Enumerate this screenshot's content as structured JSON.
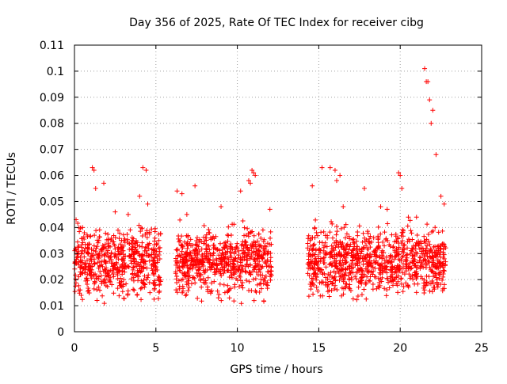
{
  "chart_data": {
    "type": "scatter",
    "title": "Day 356 of 2025, Rate Of TEC Index for receiver cibg",
    "xlabel": "GPS time / hours",
    "ylabel": "ROTI / TECUs",
    "xlim": [
      0,
      25
    ],
    "ylim": [
      0,
      0.11
    ],
    "xticks": [
      0,
      5,
      10,
      15,
      20,
      25
    ],
    "xtick_labels": [
      "0",
      "5",
      "10",
      "15",
      "20",
      "25"
    ],
    "yticks": [
      0,
      0.01,
      0.02,
      0.03,
      0.04,
      0.05,
      0.06,
      0.07,
      0.08,
      0.09,
      0.1,
      0.11
    ],
    "ytick_labels": [
      "0",
      "0.01",
      "0.02",
      "0.03",
      "0.04",
      "0.05",
      "0.06",
      "0.07",
      "0.08",
      "0.09",
      "0.1",
      "0.11"
    ],
    "grid": true,
    "marker": "+",
    "marker_color": "#ff0000",
    "series": [
      {
        "name": "ROTI",
        "x": [
          0.1,
          0.5,
          1.1,
          1.2,
          1.3,
          1.8,
          2.5,
          3.3,
          4.0,
          4.2,
          4.4,
          4.5,
          6.3,
          6.6,
          6.9,
          7.4,
          9.0,
          10.2,
          10.7,
          10.8,
          10.9,
          11.0,
          11.1,
          12.0,
          14.6,
          15.2,
          15.7,
          16.0,
          16.1,
          16.3,
          16.5,
          17.8,
          18.8,
          19.2,
          19.9,
          20.0,
          20.1,
          20.5,
          21.0,
          21.5,
          21.6,
          21.7,
          21.8,
          21.9,
          22.0,
          22.2,
          22.5,
          22.7
        ],
        "y": [
          0.043,
          0.04,
          0.063,
          0.062,
          0.055,
          0.057,
          0.046,
          0.045,
          0.052,
          0.063,
          0.062,
          0.049,
          0.054,
          0.053,
          0.045,
          0.056,
          0.048,
          0.054,
          0.058,
          0.057,
          0.062,
          0.061,
          0.06,
          0.047,
          0.056,
          0.063,
          0.063,
          0.062,
          0.058,
          0.06,
          0.048,
          0.055,
          0.048,
          0.047,
          0.061,
          0.06,
          0.055,
          0.044,
          0.044,
          0.101,
          0.096,
          0.096,
          0.089,
          0.08,
          0.085,
          0.068,
          0.052,
          0.049
        ]
      }
    ],
    "observation_intervals": [
      [
        0.0,
        5.3
      ],
      [
        6.2,
        12.1
      ],
      [
        14.3,
        22.8
      ]
    ],
    "typical_range": [
      0.005,
      0.045
    ]
  }
}
